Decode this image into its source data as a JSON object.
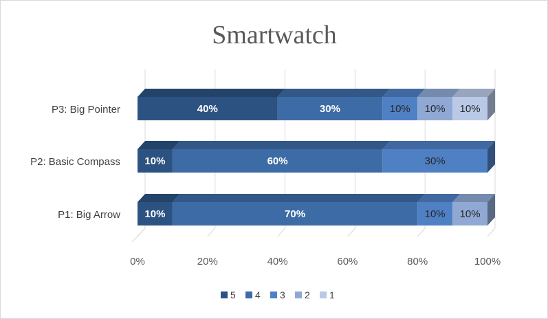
{
  "chart_data": {
    "type": "bar",
    "orientation": "horizontal",
    "stacked": "percent",
    "title": "Smartwatch",
    "categories": [
      "P1: Big Arrow",
      "P2: Basic Compass",
      "P3: Big Pointer"
    ],
    "series": [
      {
        "name": "5",
        "color": "#2c5281",
        "values": [
          10,
          10,
          40
        ]
      },
      {
        "name": "4",
        "color": "#3c6ba5",
        "values": [
          70,
          60,
          30
        ]
      },
      {
        "name": "3",
        "color": "#4f80c4",
        "values": [
          10,
          30,
          10
        ]
      },
      {
        "name": "2",
        "color": "#8fa9d4",
        "values": [
          10,
          0,
          10
        ]
      },
      {
        "name": "1",
        "color": "#b9c9e6",
        "values": [
          0,
          0,
          10
        ]
      }
    ],
    "data_labels": [
      [
        "10%",
        "10%",
        "40%"
      ],
      [
        "70%",
        "60%",
        "30%"
      ],
      [
        "10%",
        "30%",
        "10%"
      ],
      [
        "10%",
        "",
        "10%"
      ],
      [
        "",
        "",
        "10%"
      ]
    ],
    "x_ticks": [
      "0%",
      "20%",
      "40%",
      "60%",
      "80%",
      "100%"
    ],
    "xlim": [
      0,
      100
    ],
    "grid": true,
    "legend_position": "bottom",
    "three_d": true
  }
}
